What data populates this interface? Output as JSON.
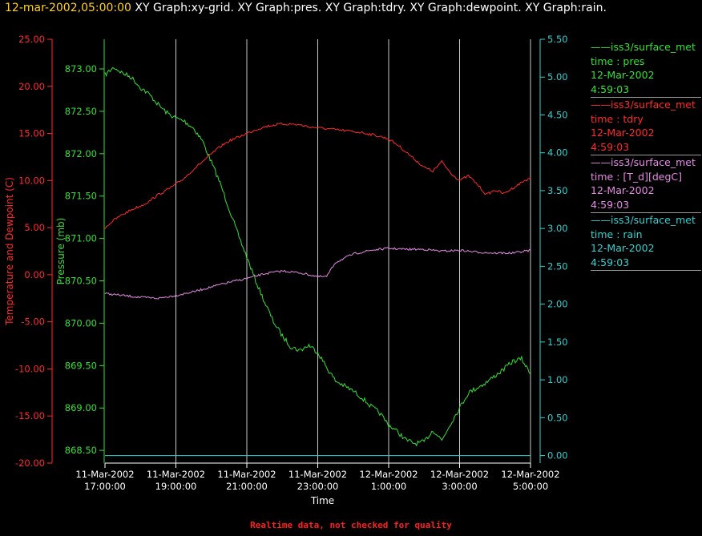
{
  "title": {
    "timestamp": "12-mar-2002,05:00:00",
    "graphs": "XY Graph:xy-grid.  XY Graph:pres.  XY Graph:tdry.  XY Graph:dewpoint.  XY Graph:rain."
  },
  "footer": "Realtime data, not checked for quality",
  "colors": {
    "temp": "#ff2a2a",
    "pres": "#35e035",
    "dew": "#e58ae5",
    "rain": "#36d0d0",
    "grid": "#c8c8c8"
  },
  "legend": [
    {
      "line1": "iss3/surface_met",
      "line2": "time : pres",
      "line3": "12-Mar-2002",
      "line4": "4:59:03",
      "color": "#35e035"
    },
    {
      "line1": "iss3/surface_met",
      "line2": "time : tdry",
      "line3": "12-Mar-2002",
      "line4": "4:59:03",
      "color": "#ff2a2a"
    },
    {
      "line1": "iss3/surface_met",
      "line2": "time : [T_d][degC]",
      "line3": "12-Mar-2002",
      "line4": "4:59:03",
      "color": "#e58ae5"
    },
    {
      "line1": "iss3/surface_met",
      "line2": "time : rain",
      "line3": "12-Mar-2002",
      "line4": "4:59:03",
      "color": "#36d0d0"
    }
  ],
  "chart_data": {
    "type": "line",
    "xlabel": "Time",
    "x_unit": "hours since 11-Mar-2002 17:00:00",
    "xlim": [
      0,
      12
    ],
    "x_ticks": [
      {
        "x": 0,
        "date": "11-Mar-2002",
        "time": "17:00:00"
      },
      {
        "x": 2,
        "date": "11-Mar-2002",
        "time": "19:00:00"
      },
      {
        "x": 4,
        "date": "11-Mar-2002",
        "time": "21:00:00"
      },
      {
        "x": 6,
        "date": "11-Mar-2002",
        "time": "23:00:00"
      },
      {
        "x": 8,
        "date": "12-Mar-2002",
        "time": "1:00:00"
      },
      {
        "x": 10,
        "date": "12-Mar-2002",
        "time": "3:00:00"
      },
      {
        "x": 12,
        "date": "12-Mar-2002",
        "time": "5:00:00"
      }
    ],
    "grid": "vertical lines at each x tick",
    "axes": {
      "temp": {
        "label": "Temperature and Dewpoint (C)",
        "range": [
          -20,
          25
        ],
        "ticks": [
          "25.00",
          "20.00",
          "15.00",
          "10.00",
          "5.00",
          "0.00",
          "-5.00",
          "-10.00",
          "-15.00",
          "-20.00"
        ],
        "tick_values": [
          25,
          20,
          15,
          10,
          5,
          0,
          -5,
          -10,
          -15,
          -20
        ]
      },
      "pres": {
        "label": "Pressure (mb)",
        "range": [
          868.35,
          873.35
        ],
        "ticks": [
          "873.00",
          "872.50",
          "872.00",
          "871.50",
          "871.00",
          "870.50",
          "870.00",
          "869.50",
          "869.00",
          "868.50"
        ],
        "tick_values": [
          873,
          872.5,
          872,
          871.5,
          871,
          870.5,
          870,
          869.5,
          869,
          868.5
        ]
      },
      "rain": {
        "label": "",
        "range": [
          -0.1,
          5.5
        ],
        "ticks": [
          "5.50",
          "5.00",
          "4.50",
          "4.00",
          "3.50",
          "3.00",
          "2.50",
          "2.00",
          "1.50",
          "1.00",
          "0.50",
          "0.00"
        ],
        "tick_values": [
          5.5,
          5,
          4.5,
          4,
          3.5,
          3,
          2.5,
          2,
          1.5,
          1,
          0.5,
          0
        ]
      }
    },
    "series": [
      {
        "name": "pres",
        "axis": "pres",
        "x": [
          0,
          0.25,
          0.5,
          0.75,
          1,
          1.25,
          1.5,
          1.75,
          2,
          2.25,
          2.5,
          2.75,
          3,
          3.25,
          3.5,
          3.75,
          4,
          4.25,
          4.5,
          4.75,
          5,
          5.25,
          5.5,
          5.75,
          6,
          6.25,
          6.5,
          6.75,
          7,
          7.25,
          7.5,
          7.75,
          8,
          8.25,
          8.5,
          8.75,
          9,
          9.25,
          9.5,
          9.75,
          10,
          10.25,
          10.5,
          10.75,
          11,
          11.25,
          11.5,
          11.75,
          12
        ],
        "values": [
          872.93,
          873.02,
          872.95,
          872.9,
          872.78,
          872.7,
          872.58,
          872.48,
          872.42,
          872.38,
          872.3,
          872.15,
          871.9,
          871.65,
          871.35,
          871.05,
          870.78,
          870.5,
          870.25,
          870.02,
          869.85,
          869.72,
          869.68,
          869.74,
          869.66,
          869.48,
          869.32,
          869.26,
          869.2,
          869.12,
          869.02,
          868.94,
          868.8,
          868.72,
          868.62,
          868.58,
          868.6,
          868.74,
          868.62,
          868.82,
          869.0,
          869.18,
          869.24,
          869.3,
          869.38,
          869.46,
          869.55,
          869.58,
          869.4
        ]
      },
      {
        "name": "tdry",
        "axis": "temp",
        "x": [
          0,
          0.25,
          0.5,
          0.75,
          1,
          1.25,
          1.5,
          1.75,
          2,
          2.25,
          2.5,
          2.75,
          3,
          3.25,
          3.5,
          3.75,
          4,
          4.25,
          4.5,
          4.75,
          5,
          5.25,
          5.5,
          5.75,
          6,
          6.25,
          6.5,
          6.75,
          7,
          7.25,
          7.5,
          7.75,
          8,
          8.25,
          8.5,
          8.75,
          9,
          9.25,
          9.5,
          9.75,
          10,
          10.25,
          10.5,
          10.75,
          11,
          11.25,
          11.5,
          11.75,
          12
        ],
        "values": [
          5.0,
          5.8,
          6.4,
          6.9,
          7.3,
          7.8,
          8.5,
          9.0,
          9.6,
          10.3,
          11.2,
          12.0,
          12.8,
          13.6,
          14.2,
          14.6,
          15.0,
          15.4,
          15.7,
          15.9,
          16.0,
          16.0,
          15.9,
          15.7,
          15.6,
          15.5,
          15.4,
          15.3,
          15.2,
          15.1,
          14.9,
          14.7,
          14.4,
          13.8,
          13.0,
          12.2,
          11.4,
          11.0,
          12.0,
          10.8,
          10.0,
          10.5,
          9.6,
          8.5,
          9.0,
          8.6,
          9.2,
          9.8,
          10.3
        ]
      },
      {
        "name": "[T_d][degC]",
        "axis": "temp",
        "x": [
          0,
          0.5,
          1,
          1.5,
          2,
          2.5,
          3,
          3.5,
          4,
          4.5,
          5,
          5.5,
          6,
          6.25,
          6.5,
          7,
          7.5,
          8,
          8.5,
          9,
          9.5,
          10,
          10.5,
          11,
          11.5,
          12
        ],
        "values": [
          -2.0,
          -2.2,
          -2.4,
          -2.5,
          -2.2,
          -1.8,
          -1.3,
          -0.8,
          -0.4,
          0.1,
          0.4,
          0.2,
          -0.2,
          -0.2,
          1.3,
          2.2,
          2.6,
          2.8,
          2.7,
          2.7,
          2.5,
          2.6,
          2.4,
          2.3,
          2.3,
          2.6
        ]
      },
      {
        "name": "rain",
        "axis": "rain",
        "x": [
          0,
          12
        ],
        "values": [
          0,
          0
        ]
      }
    ]
  }
}
